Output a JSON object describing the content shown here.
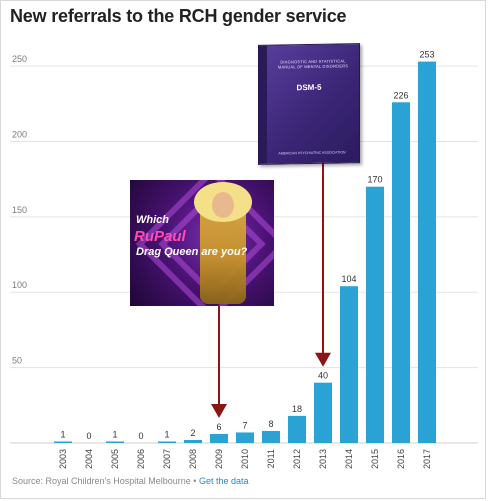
{
  "title": "New referrals to the RCH gender service",
  "source": {
    "text": "Source: Royal Children's Hospital Melbourne • ",
    "link": "Get the data"
  },
  "images": {
    "book": {
      "lines": "DIAGNOSTIC AND STATISTICAL MANUAL OF MENTAL DISORDERS",
      "edition": "DSM-5",
      "publisher": "AMERICAN PSYCHIATRIC ASSOCIATION"
    },
    "poster": {
      "line1": "Which",
      "line2": "RuPaul",
      "line3": "Drag Queen are you?"
    }
  },
  "colors": {
    "bar": "#2aa3d4",
    "arrow": "#8b1515",
    "grid": "#e3e3e3"
  },
  "chart_data": {
    "type": "bar",
    "title": "New referrals to the RCH gender service",
    "categories": [
      "2003",
      "2004",
      "2005",
      "2006",
      "2007",
      "2008",
      "2009",
      "2010",
      "2011",
      "2012",
      "2013",
      "2014",
      "2015",
      "2016",
      "2017"
    ],
    "values": [
      1,
      0,
      1,
      0,
      1,
      2,
      6,
      7,
      8,
      18,
      40,
      104,
      170,
      226,
      253
    ],
    "yticks": [
      50,
      100,
      150,
      200,
      250
    ],
    "ylim": [
      0,
      262
    ],
    "grid": true,
    "annotations": [
      {
        "type": "arrow",
        "points_to": "2009"
      },
      {
        "type": "arrow",
        "points_to": "2013"
      }
    ]
  }
}
